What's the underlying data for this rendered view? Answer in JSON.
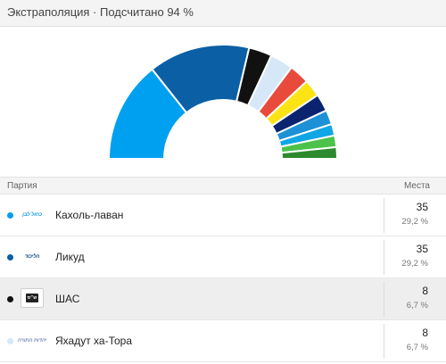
{
  "header": {
    "title": "Экстраполяция · Подсчитано 94 %"
  },
  "chart_data": {
    "type": "pie",
    "series": [
      {
        "value": 35,
        "color": "#00a0f0"
      },
      {
        "value": 35,
        "color": "#0b5fa5"
      },
      {
        "value": 8,
        "color": "#111111"
      },
      {
        "value": 8,
        "color": "#d6e8f7"
      },
      {
        "value": 7,
        "color": "#e84b3c"
      },
      {
        "value": 6,
        "color": "#fce315"
      },
      {
        "value": 6,
        "color": "#0a2470"
      },
      {
        "value": 5,
        "color": "#1e90d6"
      },
      {
        "value": 4,
        "color": "#10a6e6"
      },
      {
        "value": 4,
        "color": "#4cc24a"
      },
      {
        "value": 4,
        "color": "#2e8a2e"
      }
    ]
  },
  "table": {
    "col_party": "Партия",
    "col_seats": "Места",
    "rows": [
      {
        "name": "Кахоль-лаван",
        "seats": "35",
        "pct": "29,2 %",
        "color": "#00a0f0",
        "logo_text": "כחול לבן",
        "logo_color": "#1a9ed9",
        "logo_icon": "blue-white-logo-icon"
      },
      {
        "name": "Ликуд",
        "seats": "35",
        "pct": "29,2 %",
        "color": "#0b5fa5",
        "logo_text": "הליכוד",
        "logo_color": "#0b4e8c",
        "logo_icon": "likud-logo-icon"
      },
      {
        "name": "ШАС",
        "seats": "8",
        "pct": "6,7 %",
        "color": "#111111",
        "logo_text": "ש״ס",
        "logo_color": "#222222",
        "logo_icon": "shas-logo-icon"
      },
      {
        "name": "Яхадут ха-Тора",
        "seats": "8",
        "pct": "6,7 %",
        "color": "#d6e8f7",
        "logo_text": "יהדות התורה",
        "logo_color": "#7a8fb5",
        "logo_icon": "utj-logo-icon"
      }
    ]
  }
}
